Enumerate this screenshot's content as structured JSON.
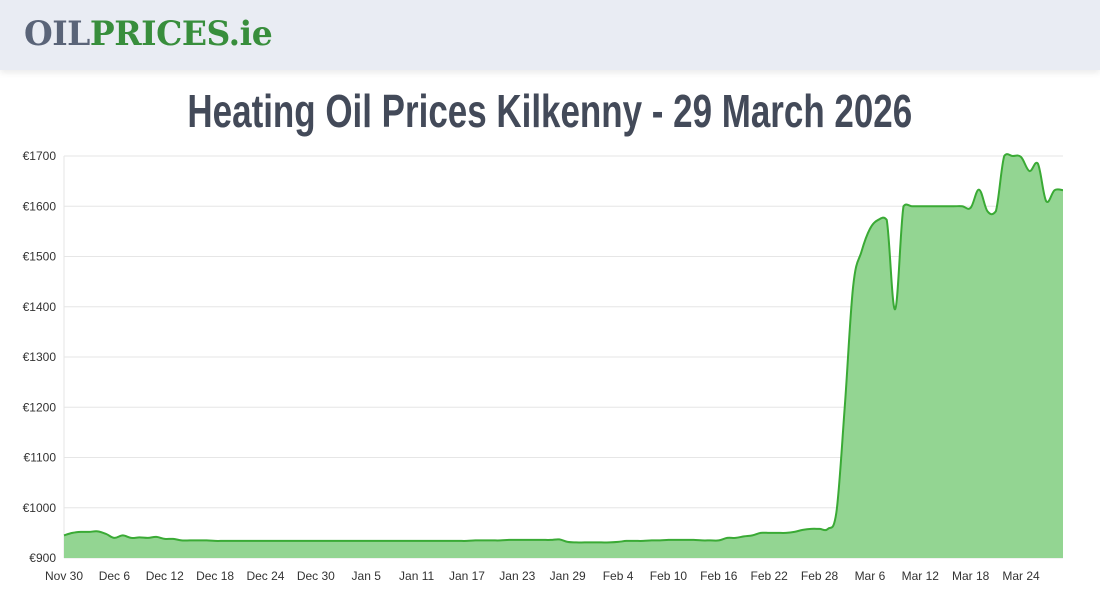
{
  "header": {
    "logo_part1": "OIL",
    "logo_part2": "PRICES.ie"
  },
  "page_title": "Heating Oil Prices Kilkenny - 29 March 2026",
  "colors": {
    "fill": "#93d592",
    "line": "#3aaa35",
    "grid": "#e6e6e6",
    "logo_grey": "#5a6478",
    "logo_green": "#388e3c"
  },
  "chart_data": {
    "type": "area",
    "title": "",
    "xlabel": "",
    "ylabel": "",
    "ylim": [
      900,
      1700
    ],
    "y_ticks": [
      "€900",
      "€1000",
      "€1100",
      "€1200",
      "€1300",
      "€1400",
      "€1500",
      "€1600",
      "€1700"
    ],
    "y_tick_values": [
      900,
      1000,
      1100,
      1200,
      1300,
      1400,
      1500,
      1600,
      1700
    ],
    "x_ticks": [
      "Nov 30",
      "Dec 6",
      "Dec 12",
      "Dec 18",
      "Dec 24",
      "Dec 30",
      "Jan 5",
      "Jan 11",
      "Jan 17",
      "Jan 23",
      "Jan 29",
      "Feb 4",
      "Feb 10",
      "Feb 16",
      "Feb 22",
      "Feb 28",
      "Mar 6",
      "Mar 12",
      "Mar 18",
      "Mar 24"
    ],
    "x_tick_dates": [
      "2025-11-30",
      "2025-12-06",
      "2025-12-12",
      "2025-12-18",
      "2025-12-24",
      "2025-12-30",
      "2026-01-05",
      "2026-01-11",
      "2026-01-17",
      "2026-01-23",
      "2026-01-29",
      "2026-02-04",
      "2026-02-10",
      "2026-02-16",
      "2026-02-22",
      "2026-02-28",
      "2026-03-06",
      "2026-03-12",
      "2026-03-18",
      "2026-03-24"
    ],
    "xlim": [
      "2025-11-30",
      "2026-03-29"
    ],
    "grid": true,
    "legend": "none",
    "x": [
      "2025-11-30",
      "2025-12-01",
      "2025-12-02",
      "2025-12-03",
      "2025-12-04",
      "2025-12-05",
      "2025-12-06",
      "2025-12-07",
      "2025-12-08",
      "2025-12-09",
      "2025-12-10",
      "2025-12-11",
      "2025-12-12",
      "2025-12-13",
      "2025-12-14",
      "2025-12-15",
      "2025-12-16",
      "2025-12-17",
      "2025-12-18",
      "2025-12-19",
      "2025-12-20",
      "2025-12-21",
      "2025-12-22",
      "2025-12-23",
      "2025-12-24",
      "2025-12-25",
      "2025-12-26",
      "2025-12-27",
      "2025-12-28",
      "2025-12-29",
      "2025-12-30",
      "2025-12-31",
      "2026-01-01",
      "2026-01-02",
      "2026-01-03",
      "2026-01-04",
      "2026-01-05",
      "2026-01-06",
      "2026-01-07",
      "2026-01-08",
      "2026-01-09",
      "2026-01-10",
      "2026-01-11",
      "2026-01-12",
      "2026-01-13",
      "2026-01-14",
      "2026-01-15",
      "2026-01-16",
      "2026-01-17",
      "2026-01-18",
      "2026-01-19",
      "2026-01-20",
      "2026-01-21",
      "2026-01-22",
      "2026-01-23",
      "2026-01-24",
      "2026-01-25",
      "2026-01-26",
      "2026-01-27",
      "2026-01-28",
      "2026-01-29",
      "2026-01-30",
      "2026-01-31",
      "2026-02-01",
      "2026-02-02",
      "2026-02-03",
      "2026-02-04",
      "2026-02-05",
      "2026-02-06",
      "2026-02-07",
      "2026-02-08",
      "2026-02-09",
      "2026-02-10",
      "2026-02-11",
      "2026-02-12",
      "2026-02-13",
      "2026-02-14",
      "2026-02-15",
      "2026-02-16",
      "2026-02-17",
      "2026-02-18",
      "2026-02-19",
      "2026-02-20",
      "2026-02-21",
      "2026-02-22",
      "2026-02-23",
      "2026-02-24",
      "2026-02-25",
      "2026-02-26",
      "2026-02-27",
      "2026-02-28",
      "2026-03-01",
      "2026-03-02",
      "2026-03-03",
      "2026-03-04",
      "2026-03-05",
      "2026-03-06",
      "2026-03-07",
      "2026-03-08",
      "2026-03-09",
      "2026-03-10",
      "2026-03-11",
      "2026-03-12",
      "2026-03-13",
      "2026-03-14",
      "2026-03-15",
      "2026-03-16",
      "2026-03-17",
      "2026-03-18",
      "2026-03-19",
      "2026-03-20",
      "2026-03-21",
      "2026-03-22",
      "2026-03-23",
      "2026-03-24",
      "2026-03-25",
      "2026-03-26",
      "2026-03-27",
      "2026-03-28",
      "2026-03-29"
    ],
    "values": [
      945,
      950,
      952,
      952,
      953,
      948,
      940,
      945,
      940,
      941,
      940,
      942,
      938,
      938,
      935,
      935,
      935,
      935,
      934,
      934,
      934,
      934,
      934,
      934,
      934,
      934,
      934,
      934,
      934,
      934,
      934,
      934,
      934,
      934,
      934,
      934,
      934,
      934,
      934,
      934,
      934,
      934,
      934,
      934,
      934,
      934,
      934,
      934,
      934,
      935,
      935,
      935,
      935,
      936,
      936,
      936,
      936,
      936,
      936,
      937,
      932,
      931,
      931,
      931,
      931,
      931,
      932,
      934,
      934,
      934,
      935,
      935,
      936,
      936,
      936,
      936,
      935,
      935,
      935,
      940,
      940,
      943,
      945,
      950,
      950,
      950,
      950,
      952,
      956,
      958,
      958,
      958,
      990,
      1200,
      1440,
      1510,
      1555,
      1573,
      1573,
      1395,
      1600,
      1600,
      1600,
      1600,
      1600,
      1600,
      1600,
      1600,
      1597,
      1633,
      1590,
      1590,
      1700,
      1700,
      1698,
      1670,
      1685,
      1610,
      1632,
      1632
    ]
  }
}
